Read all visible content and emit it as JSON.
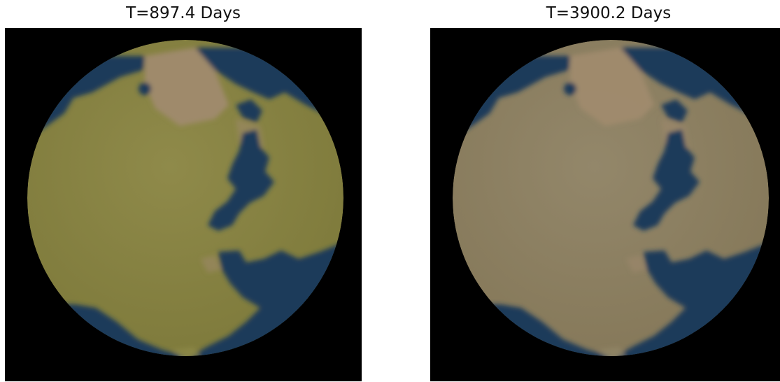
{
  "panels": [
    {
      "title": "T=897.4 Days",
      "colors": {
        "land": "#7f7b3c",
        "land_light": "#8f8a4a",
        "highland": "#a08a6e",
        "water": "#1e3a5a",
        "background": "#000000"
      }
    },
    {
      "title": "T=3900.2 Days",
      "colors": {
        "land": "#86795a",
        "land_light": "#93876a",
        "highland": "#a08a6e",
        "water": "#1e3a5a",
        "background": "#000000"
      }
    }
  ]
}
